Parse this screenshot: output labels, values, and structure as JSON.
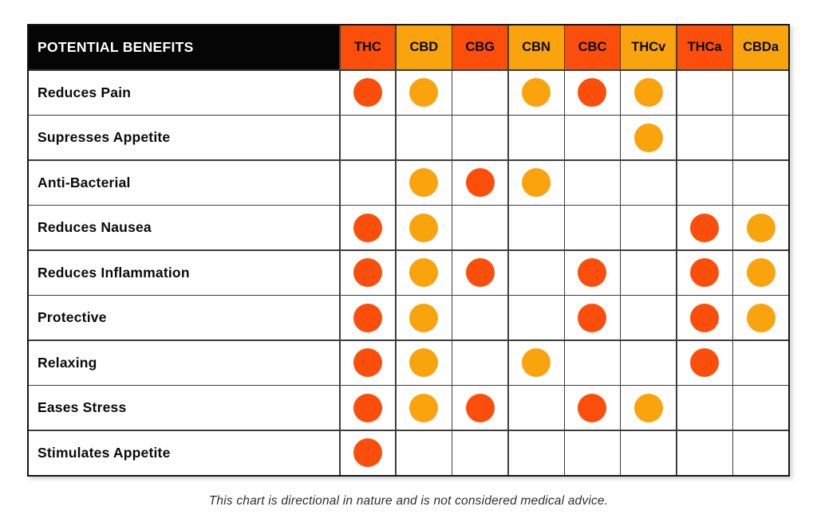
{
  "colors": {
    "red": "#FB4E0A",
    "amber": "#F9A30D",
    "header_bg": "#050505",
    "header_text": "#FFFFFF",
    "grid_line": "#3D3D3D"
  },
  "chart_data": {
    "type": "table",
    "title": "POTENTIAL BENEFITS",
    "footnote": "This chart is directional in nature and is not considered medical advice.",
    "columns": [
      "THC",
      "CBD",
      "CBG",
      "CBN",
      "CBC",
      "THCv",
      "THCa",
      "CBDa"
    ],
    "column_colors": [
      "red",
      "amber",
      "red",
      "amber",
      "red",
      "amber",
      "red",
      "amber"
    ],
    "rows": [
      "Reduces Pain",
      "Supresses Appetite",
      "Anti-Bacterial",
      "Reduces Nausea",
      "Reduces Inflammation",
      "Protective",
      "Relaxing",
      "Eases Stress",
      "Stimulates Appetite"
    ],
    "matrix": [
      [
        "red",
        "amber",
        "",
        "amber",
        "red",
        "amber",
        "",
        ""
      ],
      [
        "",
        "",
        "",
        "",
        "",
        "amber",
        "",
        ""
      ],
      [
        "",
        "amber",
        "red",
        "amber",
        "",
        "",
        "",
        ""
      ],
      [
        "red",
        "amber",
        "",
        "",
        "",
        "",
        "red",
        "amber"
      ],
      [
        "red",
        "amber",
        "red",
        "",
        "red",
        "",
        "red",
        "amber"
      ],
      [
        "red",
        "amber",
        "",
        "",
        "red",
        "",
        "red",
        "amber"
      ],
      [
        "red",
        "amber",
        "",
        "amber",
        "",
        "",
        "red",
        ""
      ],
      [
        "red",
        "amber",
        "red",
        "",
        "red",
        "amber",
        "",
        ""
      ],
      [
        "red",
        "",
        "",
        "",
        "",
        "",
        "",
        ""
      ]
    ],
    "legend_position": "none",
    "grid": true
  }
}
